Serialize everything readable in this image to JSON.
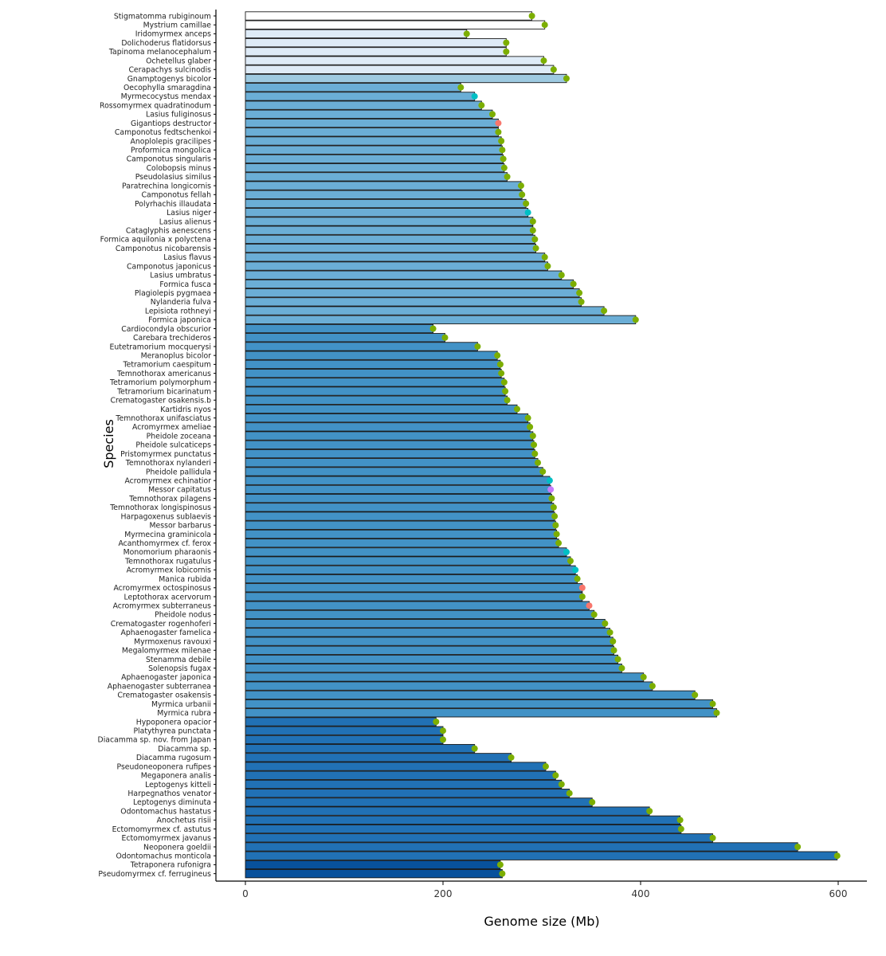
{
  "chart_data": {
    "type": "bar",
    "orientation": "horizontal",
    "xlabel": "Genome size (Mb)",
    "ylabel": "Species",
    "xlim": [
      0,
      625
    ],
    "xticks": [
      0,
      200,
      400,
      600
    ],
    "grid": false,
    "legend": "none",
    "groups": [
      {
        "fill": "#ffffff",
        "species": [
          {
            "name": "Stigmatomma rubiginoum",
            "value": 290,
            "dot": "green"
          },
          {
            "name": "Mystrium camillae",
            "value": 303,
            "dot": "green"
          }
        ]
      },
      {
        "fill": "#deebf7",
        "species": [
          {
            "name": "Iridomyrmex anceps",
            "value": 224,
            "dot": "green"
          },
          {
            "name": "Dolichoderus flatidorsus",
            "value": 264,
            "dot": "green"
          },
          {
            "name": "Tapinoma melanocephalum",
            "value": 264,
            "dot": "green"
          },
          {
            "name": "Ochetellus glaber",
            "value": 302,
            "dot": "green"
          },
          {
            "name": "Cerapachys sulcinodis",
            "value": 312,
            "dot": "green"
          }
        ]
      },
      {
        "fill": "#9ecae1",
        "species": [
          {
            "name": "Gnamptogenys bicolor",
            "value": 325,
            "dot": "green"
          }
        ]
      },
      {
        "fill": "#6baed6",
        "species": [
          {
            "name": "Oecophylla smaragdina",
            "value": 218,
            "dot": "green"
          },
          {
            "name": "Myrmecocystus mendax",
            "value": 232,
            "dot": "cyan"
          },
          {
            "name": "Rossomyrmex quadratinodum",
            "value": 239,
            "dot": "green"
          },
          {
            "name": "Lasius fuliginosus",
            "value": 250,
            "dot": "green"
          },
          {
            "name": "Gigantiops destructor",
            "value": 256,
            "dot": "red"
          },
          {
            "name": "Camponotus fedtschenkoi",
            "value": 256,
            "dot": "green"
          },
          {
            "name": "Anoplolepis gracilipes",
            "value": 259,
            "dot": "green"
          },
          {
            "name": "Proformica mongolica",
            "value": 260,
            "dot": "green"
          },
          {
            "name": "Camponotus singularis",
            "value": 261,
            "dot": "green"
          },
          {
            "name": "Colobopsis minus",
            "value": 262,
            "dot": "green"
          },
          {
            "name": "Pseudolasius similus",
            "value": 265,
            "dot": "green"
          },
          {
            "name": "Paratrechina longicornis",
            "value": 279,
            "dot": "green"
          },
          {
            "name": "Camponotus fellah",
            "value": 280,
            "dot": "green"
          },
          {
            "name": "Polyrhachis illaudata",
            "value": 284,
            "dot": "green"
          },
          {
            "name": "Lasius niger",
            "value": 286,
            "dot": "cyan"
          },
          {
            "name": "Lasius alienus",
            "value": 291,
            "dot": "green"
          },
          {
            "name": "Cataglyphis aenescens",
            "value": 291,
            "dot": "green"
          },
          {
            "name": "Formica aquilonia x polyctena",
            "value": 293,
            "dot": "green"
          },
          {
            "name": "Camponotus nicobarensis",
            "value": 294,
            "dot": "green"
          },
          {
            "name": "Lasius flavus",
            "value": 303,
            "dot": "green"
          },
          {
            "name": "Camponotus japonicus",
            "value": 306,
            "dot": "green"
          },
          {
            "name": "Lasius umbratus",
            "value": 320,
            "dot": "green"
          },
          {
            "name": "Formica fusca",
            "value": 332,
            "dot": "green"
          },
          {
            "name": "Plagiolepis pygmaea",
            "value": 338,
            "dot": "green"
          },
          {
            "name": "Nylanderia fulva",
            "value": 340,
            "dot": "green"
          },
          {
            "name": "Lepisiota rothneyi",
            "value": 363,
            "dot": "green"
          },
          {
            "name": "Formica japonica",
            "value": 395,
            "dot": "green"
          }
        ]
      },
      {
        "fill": "#4292c6",
        "species": [
          {
            "name": "Cardiocondyla obscurior",
            "value": 190,
            "dot": "green"
          },
          {
            "name": "Carebara trechideros",
            "value": 202,
            "dot": "green"
          },
          {
            "name": "Eutetramorium mocquerysi",
            "value": 235,
            "dot": "green"
          },
          {
            "name": "Meranoplus bicolor",
            "value": 255,
            "dot": "green"
          },
          {
            "name": "Tetramorium caespitum",
            "value": 258,
            "dot": "green"
          },
          {
            "name": "Temnothorax americanus",
            "value": 259,
            "dot": "green"
          },
          {
            "name": "Tetramorium polymorphum",
            "value": 262,
            "dot": "green"
          },
          {
            "name": "Tetramorium bicarinatum",
            "value": 263,
            "dot": "green"
          },
          {
            "name": "Crematogaster osakensis.b",
            "value": 265,
            "dot": "green"
          },
          {
            "name": "Kartidris nyos",
            "value": 275,
            "dot": "green"
          },
          {
            "name": "Temnothorax unifasciatus",
            "value": 286,
            "dot": "green"
          },
          {
            "name": "Acromyrmex ameliae",
            "value": 288,
            "dot": "green"
          },
          {
            "name": "Pheidole zoceana",
            "value": 291,
            "dot": "green"
          },
          {
            "name": "Pheidole sulcaticeps",
            "value": 292,
            "dot": "green"
          },
          {
            "name": "Pristomyrmex punctatus",
            "value": 293,
            "dot": "green"
          },
          {
            "name": "Temnothorax nylanderi",
            "value": 296,
            "dot": "green"
          },
          {
            "name": "Pheidole pallidula",
            "value": 301,
            "dot": "green"
          },
          {
            "name": "Acromyrmex echinatior",
            "value": 308,
            "dot": "cyan"
          },
          {
            "name": "Messor capitatus",
            "value": 309,
            "dot": "purple"
          },
          {
            "name": "Temnothorax pilagens",
            "value": 310,
            "dot": "green"
          },
          {
            "name": "Temnothorax longispinosus",
            "value": 312,
            "dot": "green"
          },
          {
            "name": "Harpagoxenus sublaevis",
            "value": 313,
            "dot": "green"
          },
          {
            "name": "Messor barbarus",
            "value": 314,
            "dot": "green"
          },
          {
            "name": "Myrmecina graminicola",
            "value": 315,
            "dot": "green"
          },
          {
            "name": "Acanthomyrmex cf. ferox",
            "value": 317,
            "dot": "green"
          },
          {
            "name": "Monomorium pharaonis",
            "value": 325,
            "dot": "cyan"
          },
          {
            "name": "Temnothorax rugatulus",
            "value": 329,
            "dot": "green"
          },
          {
            "name": "Acromyrmex lobicornis",
            "value": 334,
            "dot": "cyan"
          },
          {
            "name": "Manica rubida",
            "value": 336,
            "dot": "green"
          },
          {
            "name": "Acromyrmex octospinosus",
            "value": 341,
            "dot": "red"
          },
          {
            "name": "Leptothorax acervorum",
            "value": 341,
            "dot": "green"
          },
          {
            "name": "Acromyrmex subterraneus",
            "value": 348,
            "dot": "red"
          },
          {
            "name": "Pheidole nodus",
            "value": 353,
            "dot": "green"
          },
          {
            "name": "Crematogaster rogenhoferi",
            "value": 364,
            "dot": "green"
          },
          {
            "name": "Aphaenogaster famelica",
            "value": 369,
            "dot": "green"
          },
          {
            "name": "Myrmoxenus ravouxi",
            "value": 372,
            "dot": "green"
          },
          {
            "name": "Megalomyrmex milenae",
            "value": 373,
            "dot": "green"
          },
          {
            "name": "Stenamma debile",
            "value": 377,
            "dot": "green"
          },
          {
            "name": "Solenopsis fugax",
            "value": 381,
            "dot": "green"
          },
          {
            "name": "Aphaenogaster japonica",
            "value": 403,
            "dot": "green"
          },
          {
            "name": "Aphaenogaster subterranea",
            "value": 412,
            "dot": "green"
          },
          {
            "name": "Crematogaster osakensis",
            "value": 455,
            "dot": "green"
          },
          {
            "name": "Myrmica urbanii",
            "value": 473,
            "dot": "green"
          },
          {
            "name": "Myrmica rubra",
            "value": 477,
            "dot": "green"
          }
        ]
      },
      {
        "fill": "#2171b5",
        "species": [
          {
            "name": "Hypoponera opacior",
            "value": 193,
            "dot": "green"
          },
          {
            "name": "Platythyrea punctata",
            "value": 200,
            "dot": "green"
          },
          {
            "name": "Diacamma sp. nov. from Japan",
            "value": 200,
            "dot": "green"
          },
          {
            "name": "Diacamma sp.",
            "value": 232,
            "dot": "green"
          },
          {
            "name": "Diacamma rugosum",
            "value": 269,
            "dot": "green"
          },
          {
            "name": "Pseudoneoponera rufipes",
            "value": 304,
            "dot": "green"
          },
          {
            "name": "Megaponera analis",
            "value": 314,
            "dot": "green"
          },
          {
            "name": "Leptogenys kitteli",
            "value": 320,
            "dot": "green"
          },
          {
            "name": "Harpegnathos venator",
            "value": 328,
            "dot": "green"
          },
          {
            "name": "Leptogenys diminuta",
            "value": 351,
            "dot": "green"
          },
          {
            "name": "Odontomachus hastatus",
            "value": 409,
            "dot": "green"
          },
          {
            "name": "Anochetus risii",
            "value": 440,
            "dot": "green"
          },
          {
            "name": "Ectomomyrmex cf. astutus",
            "value": 441,
            "dot": "green"
          },
          {
            "name": "Ectomomyrmex javanus",
            "value": 473,
            "dot": "green"
          },
          {
            "name": "Neoponera goeldii",
            "value": 559,
            "dot": "green"
          },
          {
            "name": "Odontomachus monticola",
            "value": 599,
            "dot": "green"
          }
        ]
      },
      {
        "fill": "#08519c",
        "species": [
          {
            "name": "Tetraponera rufonigra",
            "value": 258,
            "dot": "green"
          },
          {
            "name": "Pseudomyrmex cf. ferrugineus",
            "value": 260,
            "dot": "green"
          }
        ]
      }
    ],
    "dot_colors": {
      "green": "#7cae00",
      "cyan": "#00bfc4",
      "red": "#f8766d",
      "purple": "#c77cff"
    },
    "bar_outline": "#1a1a1a",
    "axis_color": "#000000"
  }
}
